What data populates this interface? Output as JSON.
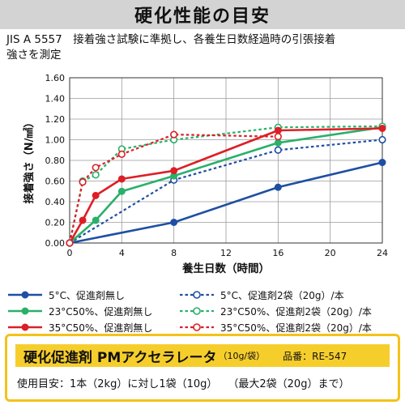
{
  "header": {
    "title": "硬化性能の目安"
  },
  "description": {
    "line1": "JIS A 5557　接着強さ試験に準拠し、各養生日数経過時の引張接着",
    "line2": "強さを測定"
  },
  "chart_data": {
    "type": "line",
    "xlabel": "養生日数（時間）",
    "ylabel": "接着強さ（N/㎟）",
    "xlim": [
      0,
      24
    ],
    "ylim": [
      0,
      1.6
    ],
    "xticks": [
      "0",
      "4",
      "8",
      "12",
      "16",
      "20",
      "24"
    ],
    "yticks": [
      "0.00",
      "0.20",
      "0.40",
      "0.60",
      "0.80",
      "1.00",
      "1.20",
      "1.40",
      "1.60"
    ],
    "grid": true,
    "legend_position": "bottom",
    "series": [
      {
        "name": "5°C、促進剤無し",
        "color": "#1f4fa3",
        "style": "solid",
        "x": [
          0,
          8,
          16,
          24
        ],
        "y": [
          0.0,
          0.2,
          0.54,
          0.78
        ]
      },
      {
        "name": "5°C、促進剤2袋（20g）/本",
        "color": "#1f4fa3",
        "style": "dashed",
        "x": [
          0,
          8,
          16,
          24
        ],
        "y": [
          0.0,
          0.61,
          0.9,
          1.0
        ]
      },
      {
        "name": "23°C50%、促進剤無し",
        "color": "#2ab06a",
        "style": "solid",
        "x": [
          0,
          2,
          4,
          8,
          16,
          24
        ],
        "y": [
          0.0,
          0.22,
          0.5,
          0.65,
          0.97,
          1.12
        ]
      },
      {
        "name": "23°C50%、促進剤2袋（20g）/本",
        "color": "#2ab06a",
        "style": "dashed",
        "x": [
          0,
          1,
          2,
          4,
          8,
          16,
          24
        ],
        "y": [
          0.0,
          0.6,
          0.66,
          0.91,
          1.0,
          1.12,
          1.13
        ]
      },
      {
        "name": "35°C50%、促進剤無し",
        "color": "#dc1f26",
        "style": "solid",
        "x": [
          0,
          1,
          2,
          4,
          8,
          16,
          24
        ],
        "y": [
          0.0,
          0.22,
          0.46,
          0.62,
          0.7,
          1.09,
          1.11
        ]
      },
      {
        "name": "35°C50%、促進剤2袋（20g）/本",
        "color": "#dc1f26",
        "style": "dashed",
        "x": [
          0,
          1,
          2,
          4,
          8,
          16
        ],
        "y": [
          0.0,
          0.59,
          0.73,
          0.86,
          1.05,
          1.03
        ]
      }
    ]
  },
  "promo": {
    "product_name": "硬化促進剤 PMアクセラレータ",
    "unit": "（10g/袋）",
    "code": "品番：RE-547",
    "usage": "使用目安：1本（2kg）に対し1袋（10g）　　（最大2袋（20g）まで）"
  }
}
